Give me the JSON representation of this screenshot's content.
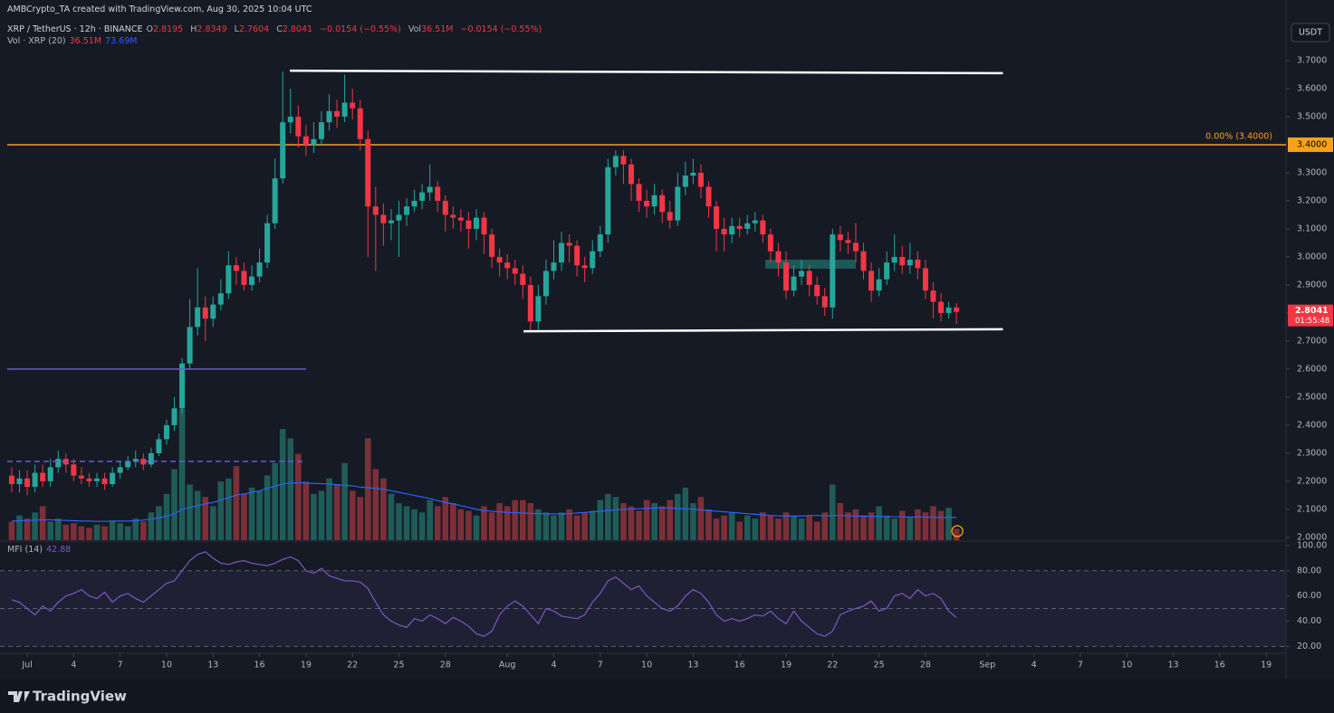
{
  "header": {
    "credit": "AMBCrypto_TA created with TradingView.com, Aug 30, 2025 10:04 UTC",
    "symbol": "XRP / TetherUS · 12h · BINANCE",
    "items": [
      {
        "label": "O",
        "value": "2.8195"
      },
      {
        "label": "H",
        "value": "2.8349"
      },
      {
        "label": "L",
        "value": "2.7604"
      },
      {
        "label": "C",
        "value": "2.8041"
      },
      {
        "value": "−0.0154 (−0.55%)"
      },
      {
        "label": "Vol",
        "value": "36.51M"
      },
      {
        "value": "−0.0154 (−0.55%)"
      }
    ],
    "volume_legend": {
      "name": "Vol · XRP (20)",
      "values": [
        "36.51M",
        "73.69M"
      ]
    },
    "currency": "USDT",
    "brand": "TradingView"
  },
  "chart_data": [
    {
      "type": "candlestick",
      "up_color": "#26a69a",
      "down_color": "#f23645",
      "xlim": [
        -0.29,
        82.28
      ],
      "ylim": [
        1.99,
        3.916
      ],
      "grid": false,
      "xticks": [
        {
          "value": 1,
          "label": "Jul"
        },
        {
          "value": 4,
          "label": "4"
        },
        {
          "value": 7,
          "label": "7"
        },
        {
          "value": 10,
          "label": "10"
        },
        {
          "value": 13,
          "label": "13"
        },
        {
          "value": 16,
          "label": "16"
        },
        {
          "value": 19,
          "label": "19"
        },
        {
          "value": 22,
          "label": "22"
        },
        {
          "value": 25,
          "label": "25"
        },
        {
          "value": 28,
          "label": "28"
        },
        {
          "value": 32,
          "label": "Aug"
        },
        {
          "value": 35,
          "label": "4"
        },
        {
          "value": 38,
          "label": "7"
        },
        {
          "value": 41,
          "label": "10"
        },
        {
          "value": 44,
          "label": "13"
        },
        {
          "value": 47,
          "label": "16"
        },
        {
          "value": 50,
          "label": "19"
        },
        {
          "value": 53,
          "label": "22"
        },
        {
          "value": 56,
          "label": "25"
        },
        {
          "value": 59,
          "label": "28"
        },
        {
          "value": 63,
          "label": "Sep"
        },
        {
          "value": 66,
          "label": "4"
        },
        {
          "value": 69,
          "label": "7"
        },
        {
          "value": 72,
          "label": "10"
        },
        {
          "value": 75,
          "label": "13"
        },
        {
          "value": 78,
          "label": "16"
        },
        {
          "value": 81,
          "label": "19"
        }
      ],
      "yticks": [
        {
          "value": 2.0,
          "label": "2.0000"
        },
        {
          "value": 2.1,
          "label": "2.1000"
        },
        {
          "value": 2.2,
          "label": "2.2000"
        },
        {
          "value": 2.3,
          "label": "2.3000"
        },
        {
          "value": 2.4,
          "label": "2.4000"
        },
        {
          "value": 2.5,
          "label": "2.5000"
        },
        {
          "value": 2.6,
          "label": "2.6000"
        },
        {
          "value": 2.7,
          "label": "2.7000"
        },
        {
          "value": 2.8,
          "label": "2.8000"
        },
        {
          "value": 2.9,
          "label": "2.9000"
        },
        {
          "value": 3.0,
          "label": "3.0000"
        },
        {
          "value": 3.1,
          "label": "3.1000"
        },
        {
          "value": 3.2,
          "label": "3.2000"
        },
        {
          "value": 3.3,
          "label": "3.3000"
        },
        {
          "value": 3.5,
          "label": "3.5000"
        },
        {
          "value": 3.6,
          "label": "3.6000"
        },
        {
          "value": 3.7,
          "label": "3.7000"
        }
      ],
      "x": [
        0,
        0.5,
        1,
        1.5,
        2,
        2.5,
        3,
        3.5,
        4,
        4.5,
        5,
        5.5,
        6,
        6.5,
        7,
        7.5,
        8,
        8.5,
        9,
        9.5,
        10,
        10.5,
        11,
        11.5,
        12,
        12.5,
        13,
        13.5,
        14,
        14.5,
        15,
        15.5,
        16,
        16.5,
        17,
        17.5,
        18,
        18.5,
        19,
        19.5,
        20,
        20.5,
        21,
        21.5,
        22,
        22.5,
        23,
        23.5,
        24,
        24.5,
        25,
        25.5,
        26,
        26.5,
        27,
        27.5,
        28,
        28.5,
        29,
        29.5,
        30,
        30.5,
        31,
        31.5,
        32,
        32.5,
        33,
        33.5,
        34,
        34.5,
        35,
        35.5,
        36,
        36.5,
        37,
        37.5,
        38,
        38.5,
        39,
        39.5,
        40,
        40.5,
        41,
        41.5,
        42,
        42.5,
        43,
        43.5,
        44,
        44.5,
        45,
        45.5,
        46,
        46.5,
        47,
        47.5,
        48,
        48.5,
        49,
        49.5,
        50,
        50.5,
        51,
        51.5,
        52,
        52.5,
        53,
        53.5,
        54,
        54.5,
        55,
        55.5,
        56,
        56.5,
        57,
        57.5,
        58,
        58.5,
        59,
        59.5,
        60,
        60.5,
        61
      ],
      "open": [
        2.22,
        2.19,
        2.21,
        2.18,
        2.23,
        2.2,
        2.25,
        2.28,
        2.26,
        2.22,
        2.21,
        2.2,
        2.21,
        2.19,
        2.23,
        2.25,
        2.27,
        2.28,
        2.26,
        2.3,
        2.35,
        2.4,
        2.46,
        2.62,
        2.75,
        2.82,
        2.78,
        2.83,
        2.87,
        2.97,
        2.95,
        2.9,
        2.93,
        2.98,
        3.12,
        3.28,
        3.48,
        3.5,
        3.43,
        3.4,
        3.42,
        3.48,
        3.52,
        3.5,
        3.55,
        3.53,
        3.42,
        3.18,
        3.15,
        3.12,
        3.13,
        3.15,
        3.18,
        3.2,
        3.23,
        3.25,
        3.2,
        3.15,
        3.14,
        3.13,
        3.1,
        3.14,
        3.08,
        3.0,
        2.98,
        2.96,
        2.94,
        2.9,
        2.77,
        2.86,
        2.95,
        2.98,
        3.05,
        3.04,
        2.97,
        2.96,
        3.02,
        3.08,
        3.32,
        3.36,
        3.33,
        3.26,
        3.2,
        3.18,
        3.22,
        3.16,
        3.13,
        3.25,
        3.29,
        3.3,
        3.25,
        3.18,
        3.1,
        3.08,
        3.11,
        3.1,
        3.12,
        3.13,
        3.08,
        3.02,
        2.98,
        2.88,
        2.93,
        2.95,
        2.9,
        2.86,
        2.82,
        3.08,
        3.06,
        3.05,
        3.02,
        2.95,
        2.88,
        2.92,
        2.98,
        3.0,
        2.97,
        2.99,
        2.96,
        2.88,
        2.84,
        2.8,
        2.8195
      ],
      "high": [
        2.25,
        2.24,
        2.24,
        2.26,
        2.26,
        2.28,
        2.31,
        2.3,
        2.28,
        2.25,
        2.23,
        2.23,
        2.23,
        2.25,
        2.27,
        2.29,
        2.31,
        2.3,
        2.32,
        2.37,
        2.42,
        2.5,
        2.64,
        2.85,
        2.96,
        2.86,
        2.86,
        2.92,
        3.02,
        3.0,
        2.98,
        2.97,
        3.03,
        3.15,
        3.35,
        3.66,
        3.6,
        3.54,
        3.47,
        3.48,
        3.52,
        3.58,
        3.56,
        3.65,
        3.6,
        3.56,
        3.45,
        3.25,
        3.19,
        3.17,
        3.2,
        3.21,
        3.24,
        3.26,
        3.33,
        3.27,
        3.22,
        3.18,
        3.17,
        3.16,
        3.17,
        3.16,
        3.1,
        3.03,
        3.01,
        2.99,
        2.97,
        2.93,
        2.9,
        2.99,
        3.06,
        3.09,
        3.08,
        3.06,
        3.0,
        3.06,
        3.11,
        3.35,
        3.38,
        3.38,
        3.35,
        3.28,
        3.24,
        3.26,
        3.24,
        3.2,
        3.3,
        3.34,
        3.35,
        3.33,
        3.27,
        3.2,
        3.14,
        3.14,
        3.14,
        3.15,
        3.16,
        3.15,
        3.1,
        3.05,
        3.02,
        2.97,
        2.99,
        2.97,
        2.93,
        2.89,
        3.1,
        3.11,
        3.09,
        3.12,
        3.05,
        2.98,
        2.96,
        3.02,
        3.08,
        3.04,
        3.05,
        3.02,
        2.99,
        2.91,
        2.87,
        2.84,
        2.8349
      ],
      "low": [
        2.16,
        2.16,
        2.15,
        2.16,
        2.18,
        2.18,
        2.23,
        2.23,
        2.2,
        2.19,
        2.18,
        2.18,
        2.17,
        2.18,
        2.21,
        2.24,
        2.25,
        2.24,
        2.25,
        2.29,
        2.33,
        2.38,
        2.44,
        2.6,
        2.72,
        2.7,
        2.75,
        2.81,
        2.85,
        2.9,
        2.88,
        2.88,
        2.91,
        2.96,
        3.1,
        3.26,
        3.44,
        3.39,
        3.36,
        3.37,
        3.4,
        3.45,
        3.46,
        3.48,
        3.49,
        3.38,
        3.0,
        2.95,
        3.04,
        3.06,
        3.0,
        3.11,
        3.16,
        3.17,
        3.2,
        3.16,
        3.09,
        3.1,
        3.09,
        3.03,
        3.06,
        3.01,
        2.96,
        2.93,
        2.92,
        2.9,
        2.85,
        2.73,
        2.74,
        2.83,
        2.92,
        2.95,
        2.98,
        2.93,
        2.91,
        2.94,
        3.0,
        3.05,
        3.29,
        3.26,
        3.2,
        3.16,
        3.14,
        3.15,
        3.12,
        3.1,
        3.11,
        3.22,
        3.26,
        3.21,
        3.14,
        3.02,
        3.02,
        3.05,
        3.07,
        3.08,
        3.09,
        3.05,
        2.98,
        2.93,
        2.85,
        2.86,
        2.9,
        2.86,
        2.83,
        2.79,
        2.78,
        3.02,
        3.01,
        2.98,
        2.92,
        2.84,
        2.86,
        2.9,
        2.95,
        2.94,
        2.94,
        2.92,
        2.85,
        2.78,
        2.77,
        2.78,
        2.7604
      ],
      "close": [
        2.19,
        2.21,
        2.18,
        2.23,
        2.2,
        2.25,
        2.28,
        2.26,
        2.22,
        2.21,
        2.2,
        2.21,
        2.19,
        2.23,
        2.25,
        2.27,
        2.28,
        2.26,
        2.3,
        2.35,
        2.4,
        2.46,
        2.62,
        2.75,
        2.82,
        2.78,
        2.83,
        2.87,
        2.97,
        2.95,
        2.9,
        2.93,
        2.98,
        3.12,
        3.28,
        3.48,
        3.5,
        3.43,
        3.4,
        3.42,
        3.48,
        3.52,
        3.5,
        3.55,
        3.53,
        3.42,
        3.18,
        3.15,
        3.12,
        3.13,
        3.15,
        3.18,
        3.2,
        3.23,
        3.25,
        3.2,
        3.15,
        3.14,
        3.13,
        3.1,
        3.14,
        3.08,
        3.0,
        2.98,
        2.96,
        2.94,
        2.9,
        2.77,
        2.86,
        2.95,
        2.98,
        3.05,
        3.04,
        2.97,
        2.96,
        3.02,
        3.08,
        3.32,
        3.36,
        3.33,
        3.26,
        3.2,
        3.18,
        3.22,
        3.16,
        3.13,
        3.25,
        3.29,
        3.3,
        3.25,
        3.18,
        3.1,
        3.08,
        3.11,
        3.1,
        3.12,
        3.13,
        3.08,
        3.02,
        2.98,
        2.88,
        2.93,
        2.95,
        2.9,
        2.86,
        2.82,
        3.08,
        3.06,
        3.05,
        3.02,
        2.95,
        2.88,
        2.92,
        2.98,
        3.0,
        2.97,
        2.99,
        2.96,
        2.88,
        2.84,
        2.8,
        2.8195,
        2.8041
      ],
      "volume": {
        "ylim": [
          0,
          1750
        ],
        "up_color": "#1f5c58",
        "down_color": "#7d2f38",
        "ma_color": "#2962ff",
        "values": [
          60,
          80,
          70,
          90,
          110,
          60,
          70,
          50,
          55,
          45,
          40,
          50,
          45,
          60,
          55,
          45,
          70,
          60,
          90,
          110,
          150,
          230,
          425,
          180,
          160,
          140,
          110,
          190,
          200,
          240,
          150,
          170,
          160,
          210,
          250,
          360,
          330,
          280,
          190,
          150,
          160,
          200,
          180,
          250,
          160,
          140,
          330,
          230,
          200,
          150,
          120,
          110,
          100,
          90,
          130,
          110,
          140,
          120,
          100,
          95,
          80,
          110,
          90,
          120,
          110,
          130,
          130,
          120,
          100,
          90,
          80,
          90,
          100,
          80,
          90,
          95,
          130,
          150,
          140,
          120,
          110,
          95,
          130,
          120,
          110,
          130,
          150,
          170,
          120,
          140,
          100,
          70,
          80,
          90,
          60,
          80,
          70,
          90,
          80,
          70,
          90,
          80,
          70,
          80,
          60,
          90,
          180,
          120,
          90,
          100,
          80,
          90,
          110,
          80,
          70,
          95,
          75,
          100,
          90,
          110,
          95,
          105,
          36.51
        ],
        "ma": [
          62,
          63,
          64,
          65,
          66,
          66,
          65,
          64,
          63,
          62,
          62,
          61,
          61,
          62,
          62,
          62,
          63,
          65,
          68,
          72,
          78,
          85,
          100,
          106,
          112,
          118,
          122,
          130,
          138,
          146,
          150,
          155,
          160,
          168,
          175,
          182,
          185,
          186,
          185,
          184,
          183,
          182,
          180,
          178,
          176,
          172,
          170,
          168,
          165,
          160,
          155,
          150,
          145,
          140,
          135,
          128,
          122,
          118,
          112,
          106,
          100,
          96,
          94,
          92,
          90,
          89,
          88,
          87,
          86,
          85,
          85,
          85,
          86,
          88,
          90,
          92,
          94,
          96,
          98,
          100,
          101,
          102,
          103,
          104,
          105,
          104,
          103,
          102,
          100,
          98,
          96,
          94,
          92,
          90,
          88,
          86,
          84,
          82,
          80,
          79,
          78,
          78,
          78,
          80,
          80,
          79,
          80,
          80,
          79,
          78,
          78,
          77,
          77,
          76,
          76,
          76,
          75,
          75,
          75,
          74,
          74,
          74,
          73.69
        ]
      },
      "lines": [
        {
          "x": [
            17.96,
            64.0
          ],
          "y": [
            3.664,
            3.655
          ],
          "color": "#ffffff",
          "dashed": false
        },
        {
          "x": [
            33.05,
            64.0
          ],
          "y": [
            2.735,
            2.742
          ],
          "color": "#ffffff",
          "dashed": false
        },
        {
          "x": [
            -0.29,
            19.0
          ],
          "y": [
            2.6,
            2.6
          ],
          "color": "#6a5acd",
          "dashed": false
        },
        {
          "x": [
            -0.29,
            19.0
          ],
          "y": [
            2.271,
            2.271
          ],
          "color": "#6a5acd",
          "dashed": true
        }
      ],
      "box": {
        "x": [
          48.66,
          54.5
        ],
        "y": [
          2.958,
          2.99
        ],
        "color": "#26a69a"
      },
      "fib": {
        "value": 3.4,
        "label": "0.00% (3.4000)",
        "axis_label": "3.4000",
        "color": "#f7a21b"
      },
      "last": {
        "label": "2.8041",
        "countdown": "01:55:48"
      }
    },
    {
      "type": "line",
      "name": "MFI (14)",
      "last_label": "42.88",
      "color": "#7e57c2",
      "ylim": [
        14.5,
        102.1
      ],
      "yticks": [
        {
          "value": 20,
          "label": "20.00"
        },
        {
          "value": 40,
          "label": "40.00"
        },
        {
          "value": 60,
          "label": "60.00"
        },
        {
          "value": 80,
          "label": "80.00"
        },
        {
          "value": 100,
          "label": "100.00"
        }
      ],
      "levels": [
        80,
        50,
        20
      ],
      "values": [
        57,
        55,
        50,
        45,
        52,
        48,
        55,
        60,
        62,
        65,
        60,
        58,
        63,
        55,
        60,
        62,
        58,
        55,
        60,
        65,
        70,
        72,
        80,
        88,
        93,
        95,
        90,
        86,
        85,
        87,
        88,
        86,
        85,
        84,
        86,
        89,
        91,
        88,
        80,
        78,
        82,
        76,
        74,
        72,
        72,
        71,
        66,
        55,
        45,
        40,
        37,
        35,
        42,
        40,
        45,
        42,
        38,
        43,
        40,
        36,
        30,
        28,
        32,
        45,
        52,
        56,
        52,
        45,
        38,
        50,
        48,
        44,
        43,
        42,
        45,
        55,
        62,
        72,
        75,
        70,
        65,
        68,
        60,
        55,
        50,
        48,
        52,
        60,
        65,
        62,
        55,
        45,
        40,
        42,
        40,
        42,
        45,
        44,
        48,
        42,
        38,
        48,
        40,
        35,
        30,
        28,
        32,
        45,
        48,
        50,
        52,
        56,
        48,
        50,
        60,
        62,
        58,
        65,
        60,
        62,
        58,
        48,
        42.88
      ]
    }
  ]
}
